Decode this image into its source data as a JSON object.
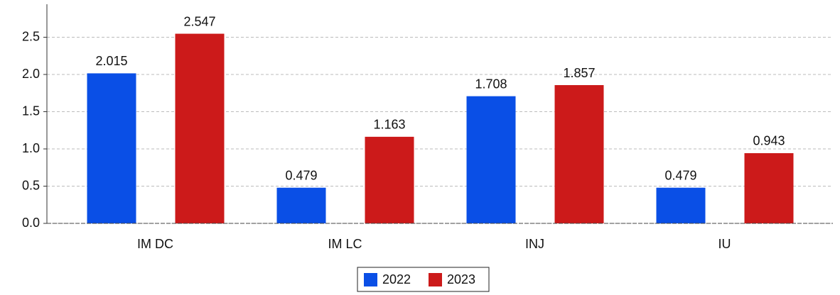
{
  "chart_data": {
    "type": "bar",
    "categories": [
      "IM DC",
      "IM LC",
      "INJ",
      "IU"
    ],
    "series": [
      {
        "name": "2022",
        "color": "#0a4fe6",
        "values": [
          2.015,
          0.479,
          1.708,
          0.479
        ]
      },
      {
        "name": "2023",
        "color": "#cc1a1a",
        "values": [
          2.547,
          1.163,
          1.857,
          0.943
        ]
      }
    ],
    "ylim": [
      0,
      2.9
    ],
    "yticks": [
      {
        "value": 0,
        "label": "0.0"
      },
      0.5,
      {
        "value": 1,
        "label": "1.0"
      },
      1.5,
      {
        "value": 2,
        "label": "2.0"
      },
      2.5
    ],
    "grid": true,
    "legend": "bottom"
  }
}
